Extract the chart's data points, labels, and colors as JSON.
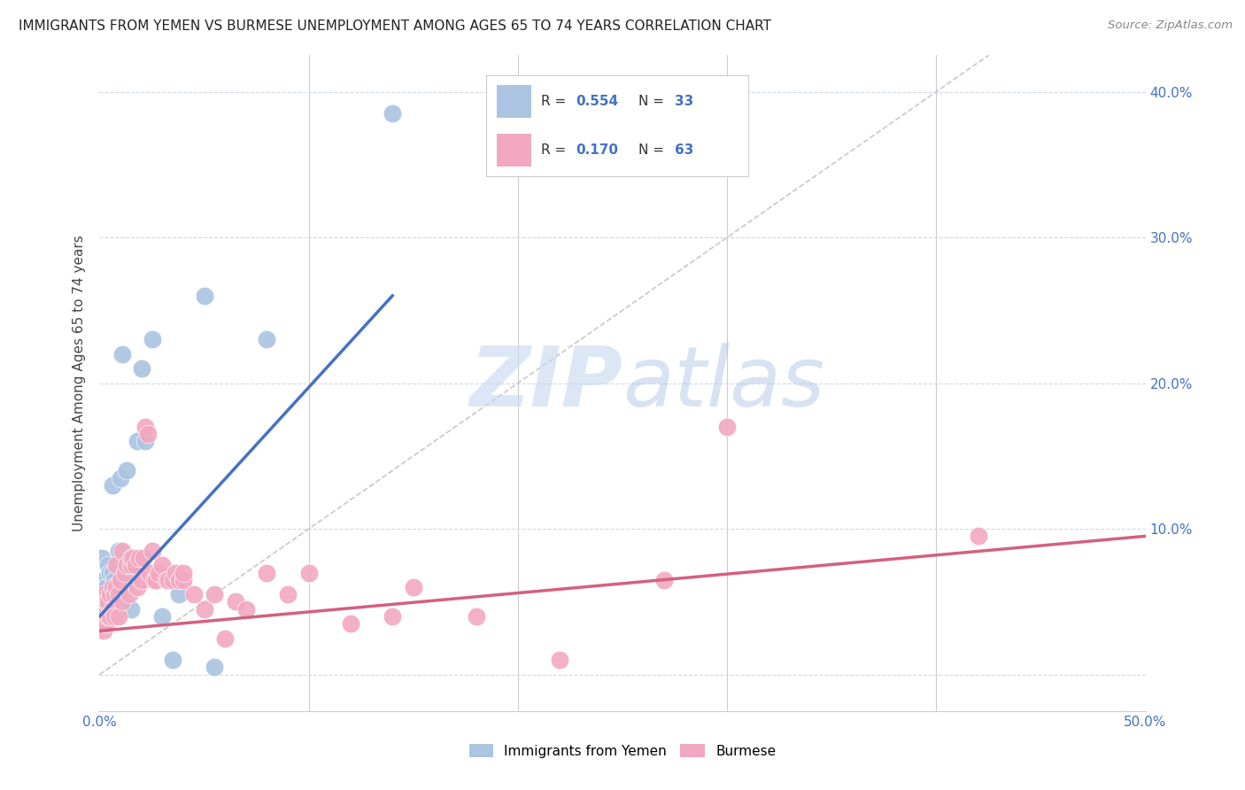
{
  "title": "IMMIGRANTS FROM YEMEN VS BURMESE UNEMPLOYMENT AMONG AGES 65 TO 74 YEARS CORRELATION CHART",
  "source": "Source: ZipAtlas.com",
  "ylabel": "Unemployment Among Ages 65 to 74 years",
  "xlim": [
    0.0,
    0.5
  ],
  "ylim": [
    -0.025,
    0.425
  ],
  "yticks": [
    0.0,
    0.1,
    0.2,
    0.3,
    0.4
  ],
  "yticklabels_right": [
    "0.0%",
    "10.0%",
    "20.0%",
    "30.0%",
    "40.0%"
  ],
  "color_blue": "#aac4e2",
  "color_pink": "#f2a8c0",
  "color_blue_line": "#4472c4",
  "color_pink_line": "#d46080",
  "color_diagonal": "#c8c8c8",
  "watermark_zip": "ZIP",
  "watermark_atlas": "atlas",
  "legend_r1": "0.554",
  "legend_n1": "33",
  "legend_r2": "0.170",
  "legend_n2": "63",
  "blue_scatter_x": [
    0.001,
    0.002,
    0.002,
    0.003,
    0.003,
    0.004,
    0.004,
    0.005,
    0.005,
    0.005,
    0.006,
    0.006,
    0.007,
    0.007,
    0.008,
    0.008,
    0.009,
    0.01,
    0.011,
    0.012,
    0.013,
    0.015,
    0.018,
    0.02,
    0.022,
    0.025,
    0.03,
    0.035,
    0.038,
    0.05,
    0.055,
    0.08,
    0.14
  ],
  "blue_scatter_y": [
    0.08,
    0.065,
    0.05,
    0.06,
    0.05,
    0.075,
    0.055,
    0.07,
    0.055,
    0.045,
    0.13,
    0.07,
    0.065,
    0.055,
    0.05,
    0.045,
    0.085,
    0.135,
    0.22,
    0.05,
    0.14,
    0.045,
    0.16,
    0.21,
    0.16,
    0.23,
    0.04,
    0.01,
    0.055,
    0.26,
    0.005,
    0.23,
    0.385
  ],
  "pink_scatter_x": [
    0.001,
    0.002,
    0.002,
    0.003,
    0.003,
    0.004,
    0.004,
    0.005,
    0.005,
    0.006,
    0.006,
    0.007,
    0.007,
    0.008,
    0.008,
    0.009,
    0.009,
    0.01,
    0.011,
    0.011,
    0.012,
    0.013,
    0.014,
    0.015,
    0.015,
    0.016,
    0.017,
    0.018,
    0.019,
    0.02,
    0.021,
    0.022,
    0.023,
    0.024,
    0.025,
    0.026,
    0.027,
    0.028,
    0.03,
    0.032,
    0.033,
    0.035,
    0.036,
    0.038,
    0.04,
    0.04,
    0.045,
    0.05,
    0.055,
    0.06,
    0.065,
    0.07,
    0.08,
    0.09,
    0.1,
    0.12,
    0.14,
    0.15,
    0.18,
    0.22,
    0.27,
    0.3,
    0.42
  ],
  "pink_scatter_y": [
    0.04,
    0.055,
    0.03,
    0.05,
    0.035,
    0.05,
    0.04,
    0.055,
    0.04,
    0.06,
    0.045,
    0.055,
    0.04,
    0.06,
    0.075,
    0.055,
    0.04,
    0.065,
    0.085,
    0.05,
    0.07,
    0.075,
    0.055,
    0.075,
    0.08,
    0.08,
    0.075,
    0.06,
    0.08,
    0.065,
    0.08,
    0.17,
    0.165,
    0.07,
    0.085,
    0.065,
    0.065,
    0.07,
    0.075,
    0.065,
    0.065,
    0.065,
    0.07,
    0.065,
    0.065,
    0.07,
    0.055,
    0.045,
    0.055,
    0.025,
    0.05,
    0.045,
    0.07,
    0.055,
    0.07,
    0.035,
    0.04,
    0.06,
    0.04,
    0.01,
    0.065,
    0.17,
    0.095
  ],
  "blue_line_x": [
    0.0,
    0.14
  ],
  "blue_line_y": [
    0.04,
    0.26
  ],
  "pink_line_x": [
    0.0,
    0.5
  ],
  "pink_line_y": [
    0.03,
    0.095
  ],
  "diag_line_x": [
    0.0,
    0.425
  ],
  "diag_line_y": [
    0.0,
    0.425
  ]
}
